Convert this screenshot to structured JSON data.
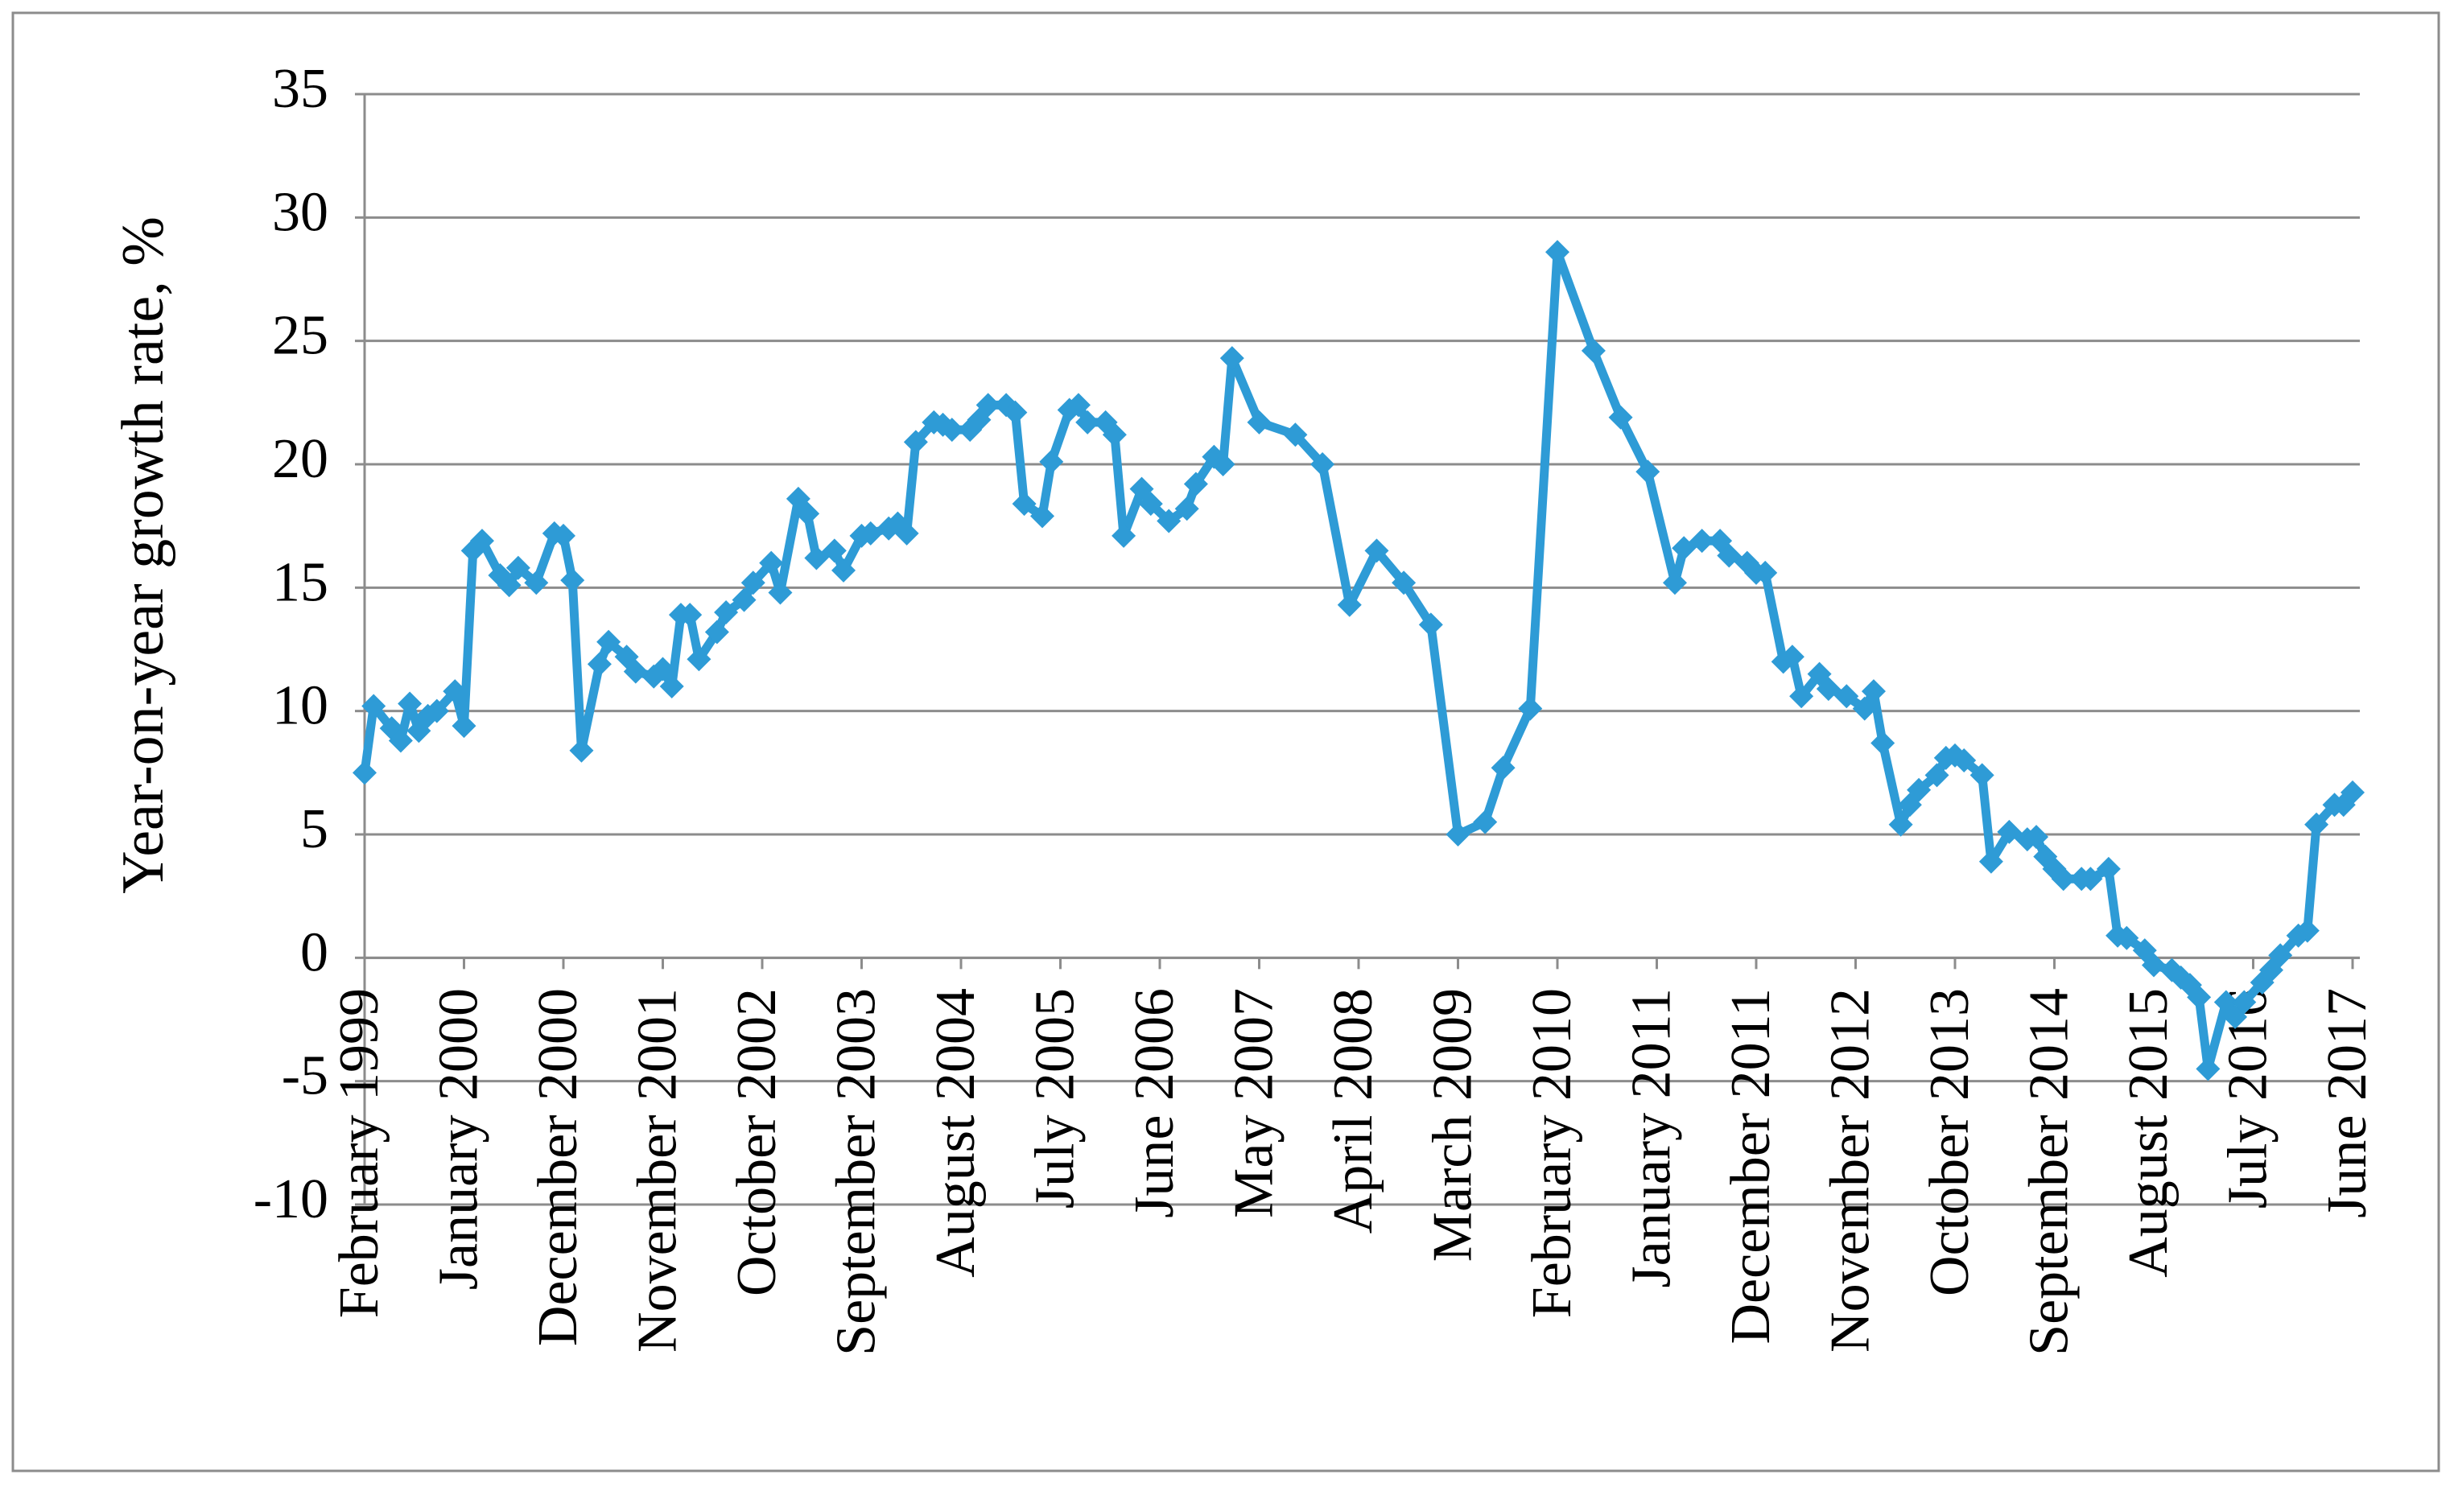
{
  "chart_data": {
    "type": "line",
    "y_label": "Year-on-year growth rate, %",
    "x": [
      "1999-02",
      "1999-03",
      "1999-05",
      "1999-06",
      "1999-07",
      "1999-08",
      "1999-09",
      "1999-10",
      "1999-12",
      "2000-01",
      "2000-02",
      "2000-03",
      "2000-05",
      "2000-06",
      "2000-07",
      "2000-09",
      "2000-11",
      "2000-12",
      "2001-01",
      "2001-02",
      "2001-04",
      "2001-05",
      "2001-07",
      "2001-08",
      "2001-10",
      "2001-11",
      "2001-12",
      "2002-01",
      "2002-02",
      "2002-03",
      "2002-05",
      "2002-06",
      "2002-08",
      "2002-09",
      "2002-11",
      "2002-12",
      "2003-02",
      "2003-03",
      "2003-04",
      "2003-06",
      "2003-07",
      "2003-09",
      "2003-10",
      "2003-12",
      "2004-01",
      "2004-02",
      "2004-03",
      "2004-05",
      "2004-06",
      "2004-07",
      "2004-09",
      "2004-10",
      "2004-11",
      "2005-01",
      "2005-02",
      "2005-03",
      "2005-05",
      "2005-06",
      "2005-08",
      "2005-09",
      "2005-10",
      "2005-12",
      "2006-01",
      "2006-02",
      "2006-04",
      "2006-05",
      "2006-07",
      "2006-09",
      "2006-10",
      "2006-12",
      "2007-01",
      "2007-02",
      "2007-05",
      "2007-09",
      "2007-12",
      "2008-03",
      "2008-06",
      "2008-09",
      "2008-12",
      "2009-03",
      "2009-06",
      "2009-08",
      "2009-11",
      "2010-02",
      "2010-06",
      "2010-09",
      "2010-12",
      "2011-03",
      "2011-04",
      "2011-06",
      "2011-08",
      "2011-09",
      "2011-11",
      "2011-12",
      "2012-01",
      "2012-03",
      "2012-04",
      "2012-05",
      "2012-07",
      "2012-08",
      "2012-10",
      "2012-12",
      "2013-01",
      "2013-02",
      "2013-04",
      "2013-05",
      "2013-06",
      "2013-08",
      "2013-09",
      "2013-10",
      "2013-11",
      "2014-01",
      "2014-02",
      "2014-04",
      "2014-06",
      "2014-07",
      "2014-08",
      "2014-09",
      "2014-10",
      "2014-12",
      "2015-01",
      "2015-03",
      "2015-04",
      "2015-05",
      "2015-07",
      "2015-08",
      "2015-10",
      "2015-11",
      "2015-12",
      "2016-01",
      "2016-02",
      "2016-04",
      "2016-05",
      "2016-06",
      "2016-08",
      "2016-09",
      "2016-10",
      "2016-12",
      "2017-01",
      "2017-02",
      "2017-04",
      "2017-05",
      "2017-06"
    ],
    "series": [
      {
        "color": "#2e9bd6",
        "values": [
          7.5,
          10.2,
          9.3,
          8.8,
          10.3,
          9.2,
          9.8,
          10.0,
          10.8,
          9.4,
          16.5,
          16.9,
          15.5,
          15.1,
          15.8,
          15.2,
          17.2,
          17.1,
          15.3,
          8.4,
          11.9,
          12.8,
          12.2,
          11.6,
          11.4,
          11.7,
          11.0,
          13.9,
          13.9,
          12.1,
          13.2,
          14.0,
          14.5,
          15.2,
          16.0,
          14.8,
          18.6,
          18.0,
          16.2,
          16.5,
          15.7,
          17.1,
          17.2,
          17.4,
          17.6,
          17.2,
          20.9,
          21.7,
          21.6,
          21.4,
          21.4,
          21.8,
          22.4,
          22.4,
          22.1,
          18.4,
          17.9,
          20.1,
          22.2,
          22.4,
          21.7,
          21.7,
          21.2,
          17.1,
          19.0,
          18.4,
          17.7,
          18.2,
          19.2,
          20.3,
          20.0,
          24.3,
          21.7,
          21.2,
          20.0,
          14.3,
          16.5,
          15.2,
          13.5,
          5.0,
          5.5,
          7.7,
          10.1,
          28.6,
          24.6,
          21.9,
          19.7,
          15.2,
          16.6,
          16.9,
          16.9,
          16.3,
          16.0,
          15.6,
          15.6,
          12.0,
          12.2,
          10.6,
          11.5,
          10.9,
          10.6,
          10.1,
          10.8,
          8.7,
          5.4,
          6.2,
          6.8,
          7.4,
          8.1,
          8.2,
          8.0,
          7.4,
          3.9,
          5.1,
          4.8,
          4.9,
          4.1,
          3.6,
          3.2,
          3.2,
          3.2,
          3.6,
          0.9,
          0.8,
          0.3,
          -0.3,
          -0.5,
          -0.8,
          -1.1,
          -1.6,
          -4.5,
          -1.8,
          -2.4,
          -1.8,
          -1.0,
          -0.5,
          0.1,
          0.9,
          1.1,
          5.4,
          6.2,
          6.2,
          6.7
        ]
      }
    ],
    "xlim": [
      "1999-02",
      "2017-06"
    ],
    "xticks": [
      {
        "value": "1999-02",
        "label": "February 1999"
      },
      {
        "value": "2000-01",
        "label": "January 2000"
      },
      {
        "value": "2000-12",
        "label": "December 2000"
      },
      {
        "value": "2001-11",
        "label": "November 2001"
      },
      {
        "value": "2002-10",
        "label": "October 2002"
      },
      {
        "value": "2003-09",
        "label": "September 2003"
      },
      {
        "value": "2004-08",
        "label": "August 2004"
      },
      {
        "value": "2005-07",
        "label": "July 2005"
      },
      {
        "value": "2006-06",
        "label": "June 2006"
      },
      {
        "value": "2007-05",
        "label": "May 2007"
      },
      {
        "value": "2008-04",
        "label": "April 2008"
      },
      {
        "value": "2009-03",
        "label": "March 2009"
      },
      {
        "value": "2010-02",
        "label": "February 2010"
      },
      {
        "value": "2011-01",
        "label": "January 2011"
      },
      {
        "value": "2011-12",
        "label": "December 2011"
      },
      {
        "value": "2012-11",
        "label": "November 2012"
      },
      {
        "value": "2013-10",
        "label": "October 2013"
      },
      {
        "value": "2014-09",
        "label": "September 2014"
      },
      {
        "value": "2015-08",
        "label": "August 2015"
      },
      {
        "value": "2016-07",
        "label": "July 2016"
      },
      {
        "value": "2017-06",
        "label": "June 2017"
      }
    ],
    "ylim": [
      -10,
      35
    ],
    "yticks": [
      -10,
      -5,
      0,
      5,
      10,
      15,
      20,
      25,
      30,
      35
    ],
    "grid": true
  }
}
